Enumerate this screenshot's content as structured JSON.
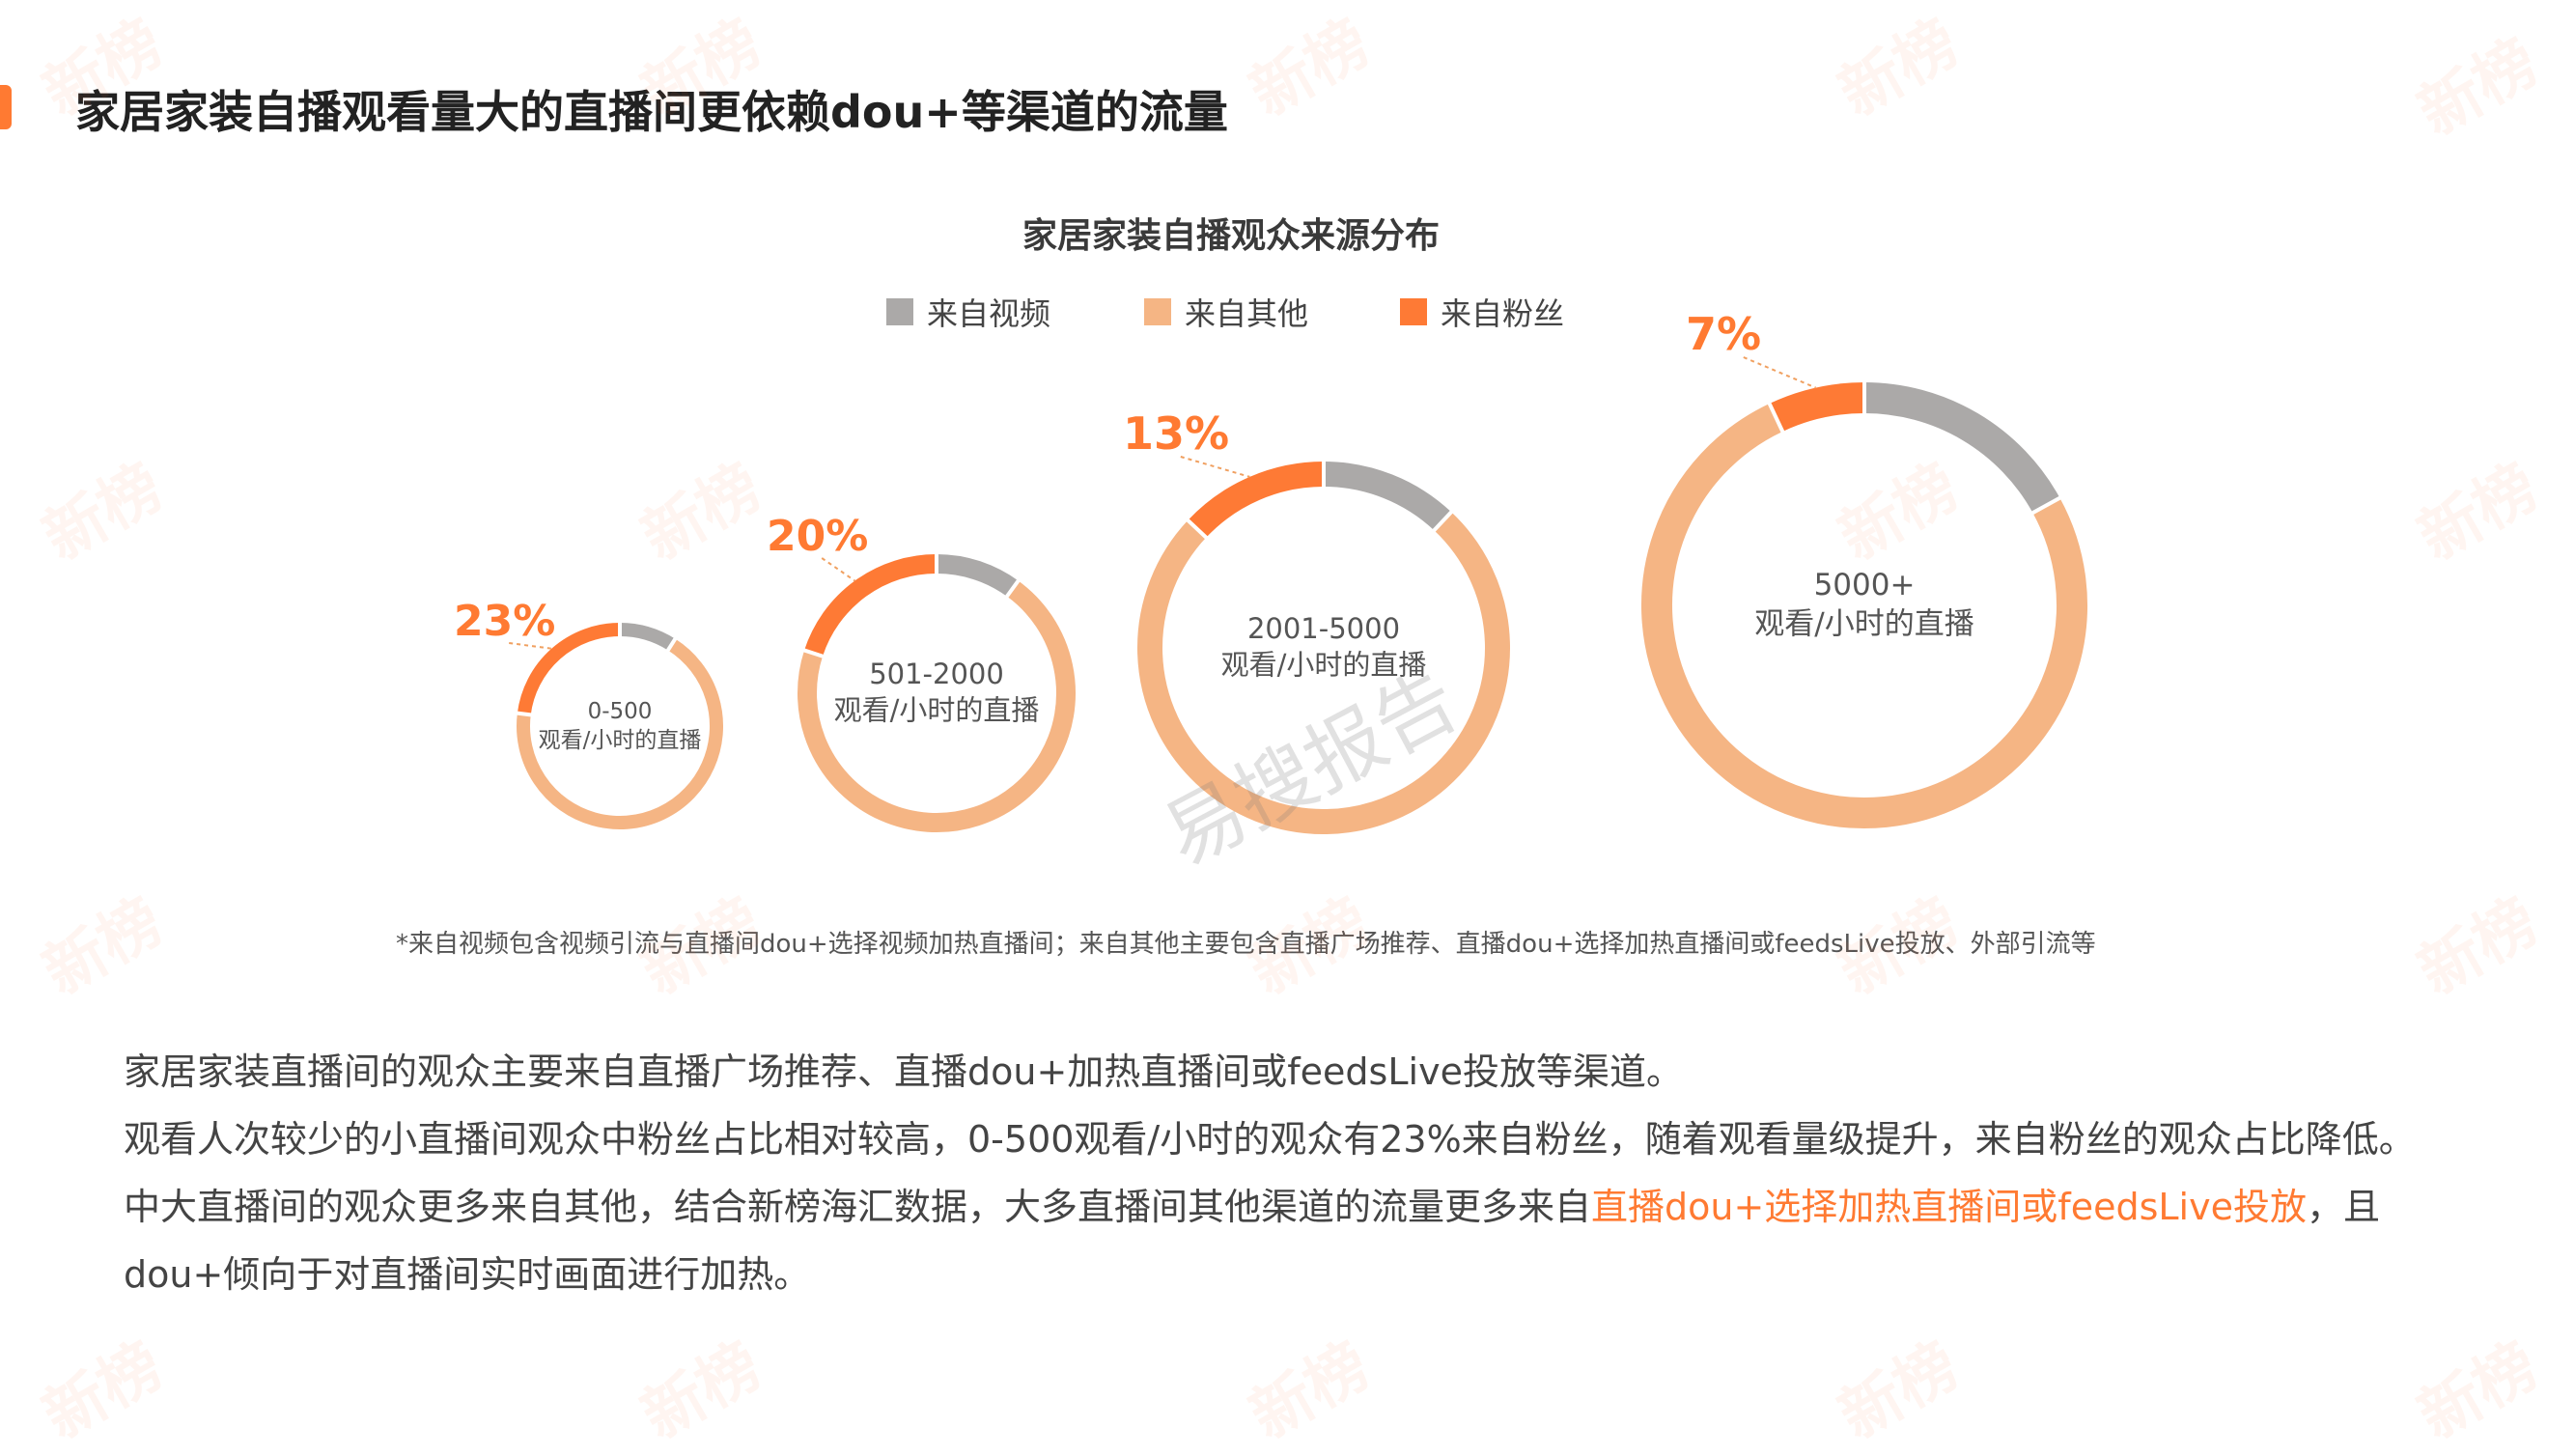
{
  "page": {
    "title": "家居家装自播观看量大的直播间更依赖dou+等渠道的流量"
  },
  "colors": {
    "video": "#aba9a8",
    "other": "#f5b584",
    "fans": "#fe7a35",
    "accent": "#ff7a32"
  },
  "chart_data": {
    "type": "donut",
    "title": "家居家装自播观众来源分布",
    "legend": [
      "来自视频",
      "来自其他",
      "来自粉丝"
    ],
    "legend_position": "top-center",
    "charts": [
      {
        "label_line1": "0-500",
        "label_line2": "观看/小时的直播",
        "fans_pct_label": "23%",
        "values": {
          "来自视频": 9,
          "来自其他": 68,
          "来自粉丝": 23
        }
      },
      {
        "label_line1": "501-2000",
        "label_line2": "观看/小时的直播",
        "fans_pct_label": "20%",
        "values": {
          "来自视频": 10,
          "来自其他": 70,
          "来自粉丝": 20
        }
      },
      {
        "label_line1": "2001-5000",
        "label_line2": "观看/小时的直播",
        "fans_pct_label": "13%",
        "values": {
          "来自视频": 12,
          "来自其他": 75,
          "来自粉丝": 13
        }
      },
      {
        "label_line1": "5000+",
        "label_line2": "观看/小时的直播",
        "fans_pct_label": "7%",
        "values": {
          "来自视频": 17,
          "来自其他": 76,
          "来自粉丝": 7
        }
      }
    ]
  },
  "footnote": "*来自视频包含视频引流与直播间dou+选择视频加热直播间；来自其他主要包含直播广场推荐、直播dou+选择加热直播间或feedsLive投放、外部引流等",
  "body": {
    "line1": "家居家装直播间的观众主要来自直播广场推荐、直播dou+加热直播间或feedsLive投放等渠道。",
    "line2": "观看人次较少的小直播间观众中粉丝占比相对较高，0-500观看/小时的观众有23%来自粉丝，随着观看量级提升，来自粉丝的观众占比降低。",
    "line3_pre": "中大直播间的观众更多来自其他，结合新榜海汇数据，大多直播间其他渠道的流量更多来自",
    "line3_highlight": "直播dou+选择加热直播间或feedsLive投放",
    "line3_post": "，且dou+倾向于对直播间实时画面进行加热。"
  },
  "watermark": {
    "brand": "新榜",
    "center": "易搜报告"
  }
}
